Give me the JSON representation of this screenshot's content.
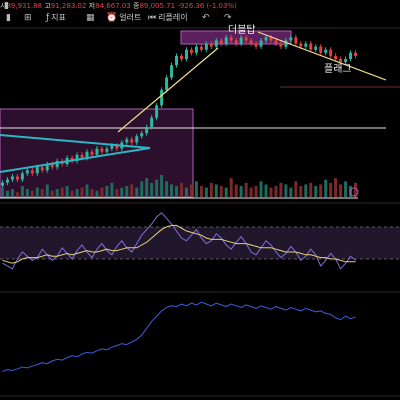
{
  "ohlc": {
    "prefix": "시",
    "open": "89,931.88",
    "high_label": "고",
    "high": "91,283.02",
    "low_label": "저",
    "low": "84,667.03",
    "close_label": "종",
    "close": "89,005.71",
    "change": "-926.36 (-1.03%)"
  },
  "toolbar": {
    "indicators_label": "지표",
    "alerts_label": "얼러트",
    "replay_label": "리플레이",
    "icons": [
      "candle-icon",
      "indicators-icon",
      "layout-icon",
      "alert-icon",
      "replay-icon",
      "undo-icon",
      "redo-icon"
    ]
  },
  "annotations": {
    "double_top": "더블탑",
    "flag": "플래그"
  },
  "colors": {
    "up": "#e0433f",
    "down": "#2fb8a0",
    "triangle": "#2bb6c6",
    "trend": "#f0e08a",
    "zone": "#7a2a7e",
    "rsi_band": "#3a2a52",
    "rsi": "#7f6fd8",
    "rsi_ma": "#e6d27a",
    "obv": "#3d5bd8"
  },
  "chart_data": [
    {
      "type": "candlestick",
      "title": "",
      "series": [
        {
          "values": [
            74,
            75,
            76,
            75,
            77,
            78,
            77,
            79,
            78,
            80,
            79,
            81,
            80,
            82,
            81,
            83,
            82,
            84,
            83,
            85,
            84,
            85,
            86,
            85,
            87,
            88,
            87,
            89,
            90,
            92,
            95,
            99,
            104,
            108,
            112,
            115,
            114,
            117,
            116,
            118,
            117,
            119,
            118,
            120,
            119,
            121,
            120,
            119,
            121,
            120,
            119,
            118,
            120,
            121,
            120,
            119,
            118,
            120,
            121,
            119,
            118,
            119,
            117,
            118,
            116,
            117,
            115,
            114,
            113,
            114,
            116,
            115
          ]
        }
      ],
      "annotations": [
        "더블탑",
        "플래그"
      ],
      "ylim": [
        70,
        125
      ]
    },
    {
      "type": "bar",
      "title": "",
      "values": [
        6,
        4,
        5,
        3,
        7,
        5,
        4,
        6,
        5,
        8,
        4,
        5,
        6,
        7,
        4,
        5,
        6,
        8,
        5,
        4,
        6,
        7,
        9,
        5,
        6,
        7,
        8,
        6,
        10,
        12,
        9,
        11,
        14,
        10,
        8,
        7,
        9,
        6,
        8,
        10,
        7,
        6,
        9,
        8,
        7,
        6,
        12,
        8,
        7,
        9,
        6,
        7,
        10,
        8,
        6,
        7,
        9,
        8,
        6,
        10,
        7,
        8,
        9,
        7,
        8,
        11,
        9,
        12,
        8,
        10,
        7,
        9
      ]
    },
    {
      "type": "line",
      "title": "",
      "series": [
        {
          "values": [
            42,
            40,
            38,
            45,
            50,
            47,
            44,
            46,
            52,
            48,
            44,
            47,
            53,
            49,
            45,
            51,
            55,
            50,
            46,
            52,
            56,
            51,
            48,
            54,
            58,
            53,
            50,
            56,
            62,
            66,
            70,
            75,
            78,
            74,
            70,
            65,
            60,
            58,
            62,
            66,
            60,
            56,
            58,
            63,
            60,
            55,
            52,
            57,
            61,
            56,
            50,
            48,
            53,
            58,
            55,
            50,
            46,
            49,
            54,
            50,
            44,
            47,
            52,
            48,
            40,
            44,
            49,
            45,
            38,
            42,
            47,
            44
          ]
        },
        {
          "values": [
            44,
            43,
            42,
            43,
            45,
            46,
            46,
            46,
            47,
            48,
            47,
            47,
            48,
            49,
            48,
            49,
            50,
            51,
            50,
            50,
            51,
            52,
            51,
            51,
            52,
            53,
            53,
            53,
            55,
            57,
            60,
            63,
            66,
            68,
            69,
            69,
            67,
            65,
            64,
            63,
            62,
            60,
            59,
            59,
            59,
            58,
            57,
            56,
            56,
            56,
            55,
            54,
            53,
            53,
            53,
            52,
            51,
            50,
            50,
            50,
            49,
            48,
            48,
            47,
            46,
            46,
            45,
            45,
            44,
            43,
            43,
            43
          ]
        }
      ]
    },
    {
      "type": "line",
      "title": "",
      "series": [
        {
          "values": [
            10,
            12,
            11,
            13,
            15,
            14,
            16,
            18,
            20,
            19,
            22,
            24,
            23,
            26,
            28,
            27,
            30,
            32,
            31,
            34,
            36,
            35,
            38,
            40,
            42,
            41,
            44,
            47,
            52,
            60,
            68,
            74,
            80,
            84,
            86,
            85,
            88,
            86,
            89,
            87,
            90,
            88,
            86,
            89,
            87,
            85,
            88,
            86,
            84,
            87,
            85,
            83,
            86,
            84,
            82,
            85,
            83,
            81,
            84,
            82,
            80,
            83,
            81,
            79,
            80,
            77,
            76,
            72,
            70,
            74,
            71,
            73
          ]
        }
      ]
    }
  ]
}
